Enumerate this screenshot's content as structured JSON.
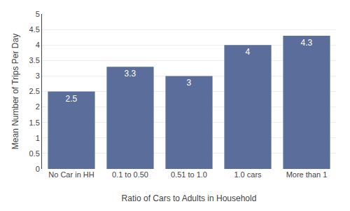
{
  "chart_data": {
    "type": "bar",
    "categories": [
      "No Car in HH",
      "0.1 to 0.50",
      "0.51 to 1.0",
      "1.0 cars",
      "More than 1"
    ],
    "values": [
      2.5,
      3.3,
      3.0,
      4.0,
      4.3
    ],
    "color": "#5b6e9b",
    "xlabel": "Ratio of Cars to Adults in Household",
    "ylabel": "Mean Number of Trips Per Day",
    "ylim": [
      0,
      5
    ],
    "yticks": [
      0,
      0.5,
      1.0,
      1.5,
      2.0,
      2.5,
      3.0,
      3.5,
      4.0,
      4.5,
      5.0
    ],
    "grid": true,
    "data_labels": true
  }
}
